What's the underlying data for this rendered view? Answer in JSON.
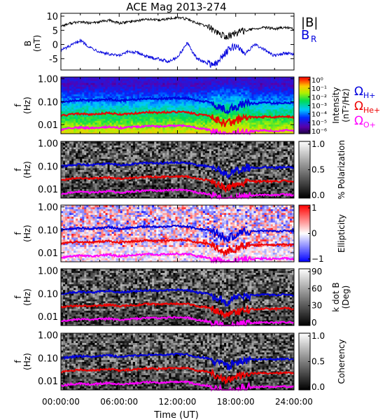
{
  "title": "ACE Mag 2013-274",
  "colors": {
    "black": "#000000",
    "blue": "#0000dd",
    "red": "#ee0000",
    "magenta": "#ff00ff",
    "axis": "#000000"
  },
  "legend_top": {
    "absb": "|B|",
    "br": "B",
    "br_sub": "R"
  },
  "legend_gyro": [
    {
      "sym": "Ω",
      "sub": "H+",
      "color": "#0000dd"
    },
    {
      "sym": "Ω",
      "sub": "He+",
      "color": "#ee0000"
    },
    {
      "sym": "Ω",
      "sub": "O+",
      "color": "#ff00ff"
    }
  ],
  "chart_data": [
    {
      "type": "line",
      "panel": "B",
      "ylabel": "B",
      "yunit": "(nT)",
      "ylim": [
        -9,
        11
      ],
      "yticks": [
        "10",
        "5",
        "0",
        "-5"
      ],
      "yticks_values": [
        10,
        5,
        0,
        -5
      ],
      "x_hours": [
        0,
        1,
        2,
        3,
        4,
        5,
        6,
        7,
        8,
        9,
        10,
        11,
        12,
        13,
        14,
        15,
        16,
        17,
        18,
        19,
        20,
        21,
        22,
        23,
        24
      ],
      "series": [
        {
          "name": "|B|",
          "color": "#000000",
          "values": [
            6.5,
            7.5,
            8.0,
            7.5,
            8.0,
            8.5,
            7.5,
            8.0,
            8.5,
            9.0,
            8.5,
            9.0,
            9.5,
            9.0,
            7.5,
            6.5,
            4.5,
            2.5,
            4.0,
            5.0,
            5.5,
            6.0,
            5.5,
            6.0,
            5.5
          ]
        },
        {
          "name": "BR",
          "color": "#0000dd",
          "values": [
            -2.0,
            -0.5,
            1.5,
            -1.0,
            -2.5,
            -3.5,
            -4.0,
            -2.5,
            -3.0,
            -4.5,
            -5.0,
            -6.0,
            -4.5,
            0.5,
            -5.0,
            -6.5,
            -7.0,
            -2.5,
            -0.5,
            -3.0,
            0.0,
            -2.0,
            -4.0,
            -3.0,
            -3.5
          ]
        }
      ]
    },
    {
      "type": "heatmap",
      "panel": "intensity",
      "ylabel": "f",
      "yunit": "(Hz)",
      "yticks": [
        "1.00",
        "0.10",
        "0.01"
      ],
      "yticks_values": [
        1.0,
        0.1,
        0.01
      ],
      "ylim": [
        0.004,
        1.2
      ],
      "colorbar": {
        "label": "Intensity",
        "unit": "(nT²/Hz)",
        "scale": "rainbow",
        "ticks": [
          "10⁰",
          "10⁻¹",
          "10⁻²",
          "10⁻³",
          "10⁻⁴",
          "10⁻⁵",
          "10⁻⁶"
        ]
      }
    },
    {
      "type": "heatmap",
      "panel": "polarization",
      "ylabel": "f",
      "yunit": "(Hz)",
      "yticks": [
        "1.00",
        "0.10",
        "0.01"
      ],
      "yticks_values": [
        1.0,
        0.1,
        0.01
      ],
      "ylim": [
        0.004,
        1.2
      ],
      "colorbar": {
        "label": "% Polarization",
        "unit": "",
        "scale": "gray",
        "ticks": [
          "1.0",
          "0.5",
          "0.0"
        ]
      }
    },
    {
      "type": "heatmap",
      "panel": "ellipticity",
      "ylabel": "f",
      "yunit": "(Hz)",
      "yticks": [
        "1.00",
        "0.10",
        "0.01"
      ],
      "yticks_values": [
        1.0,
        0.1,
        0.01
      ],
      "ylim": [
        0.004,
        1.2
      ],
      "colorbar": {
        "label": "Ellipticity",
        "unit": "",
        "scale": "bwr",
        "ticks": [
          "1",
          "0",
          "−1"
        ]
      }
    },
    {
      "type": "heatmap",
      "panel": "kdotb",
      "ylabel": "f",
      "yunit": "(Hz)",
      "yticks": [
        "1.00",
        "0.10",
        "0.01"
      ],
      "yticks_values": [
        1.0,
        0.1,
        0.01
      ],
      "ylim": [
        0.004,
        1.2
      ],
      "colorbar": {
        "label": "k dot B",
        "unit": "(Deg)",
        "scale": "gray",
        "ticks": [
          "90",
          "60",
          "30",
          "0"
        ]
      }
    },
    {
      "type": "heatmap",
      "panel": "coherency",
      "ylabel": "f",
      "yunit": "(Hz)",
      "yticks": [
        "1.00",
        "0.10",
        "0.01"
      ],
      "yticks_values": [
        1.0,
        0.1,
        0.01
      ],
      "ylim": [
        0.004,
        1.2
      ],
      "colorbar": {
        "label": "Coherency",
        "unit": "",
        "scale": "gray",
        "ticks": [
          "1.0",
          "0.5",
          "0.0"
        ]
      }
    }
  ],
  "gyrofrequency_hz": {
    "x_hours": [
      0,
      1,
      2,
      3,
      4,
      5,
      6,
      7,
      8,
      9,
      10,
      11,
      12,
      13,
      14,
      15,
      16,
      17,
      18,
      19,
      20,
      21,
      22,
      23,
      24
    ],
    "H+": [
      0.095,
      0.11,
      0.12,
      0.11,
      0.12,
      0.13,
      0.11,
      0.12,
      0.13,
      0.14,
      0.13,
      0.14,
      0.145,
      0.14,
      0.11,
      0.1,
      0.07,
      0.04,
      0.06,
      0.08,
      0.085,
      0.09,
      0.085,
      0.09,
      0.085
    ],
    "He+": [
      0.024,
      0.028,
      0.03,
      0.028,
      0.03,
      0.032,
      0.028,
      0.03,
      0.032,
      0.035,
      0.033,
      0.035,
      0.036,
      0.035,
      0.028,
      0.025,
      0.018,
      0.01,
      0.015,
      0.02,
      0.021,
      0.022,
      0.021,
      0.023,
      0.021
    ],
    "O+": [
      0.006,
      0.007,
      0.0075,
      0.007,
      0.0075,
      0.008,
      0.007,
      0.0075,
      0.008,
      0.0088,
      0.0082,
      0.0088,
      0.009,
      0.0088,
      0.007,
      0.0062,
      0.0045,
      0.003,
      0.0038,
      0.005,
      0.0053,
      0.0056,
      0.0053,
      0.0057,
      0.0053
    ]
  },
  "xaxis": {
    "label": "Time (UT)",
    "ticks": [
      "00:00:00",
      "06:00:00",
      "12:00:00",
      "18:00:00",
      "24:00:00"
    ],
    "tick_hours": [
      0,
      6,
      12,
      18,
      24
    ],
    "xlim": [
      0,
      24
    ]
  }
}
